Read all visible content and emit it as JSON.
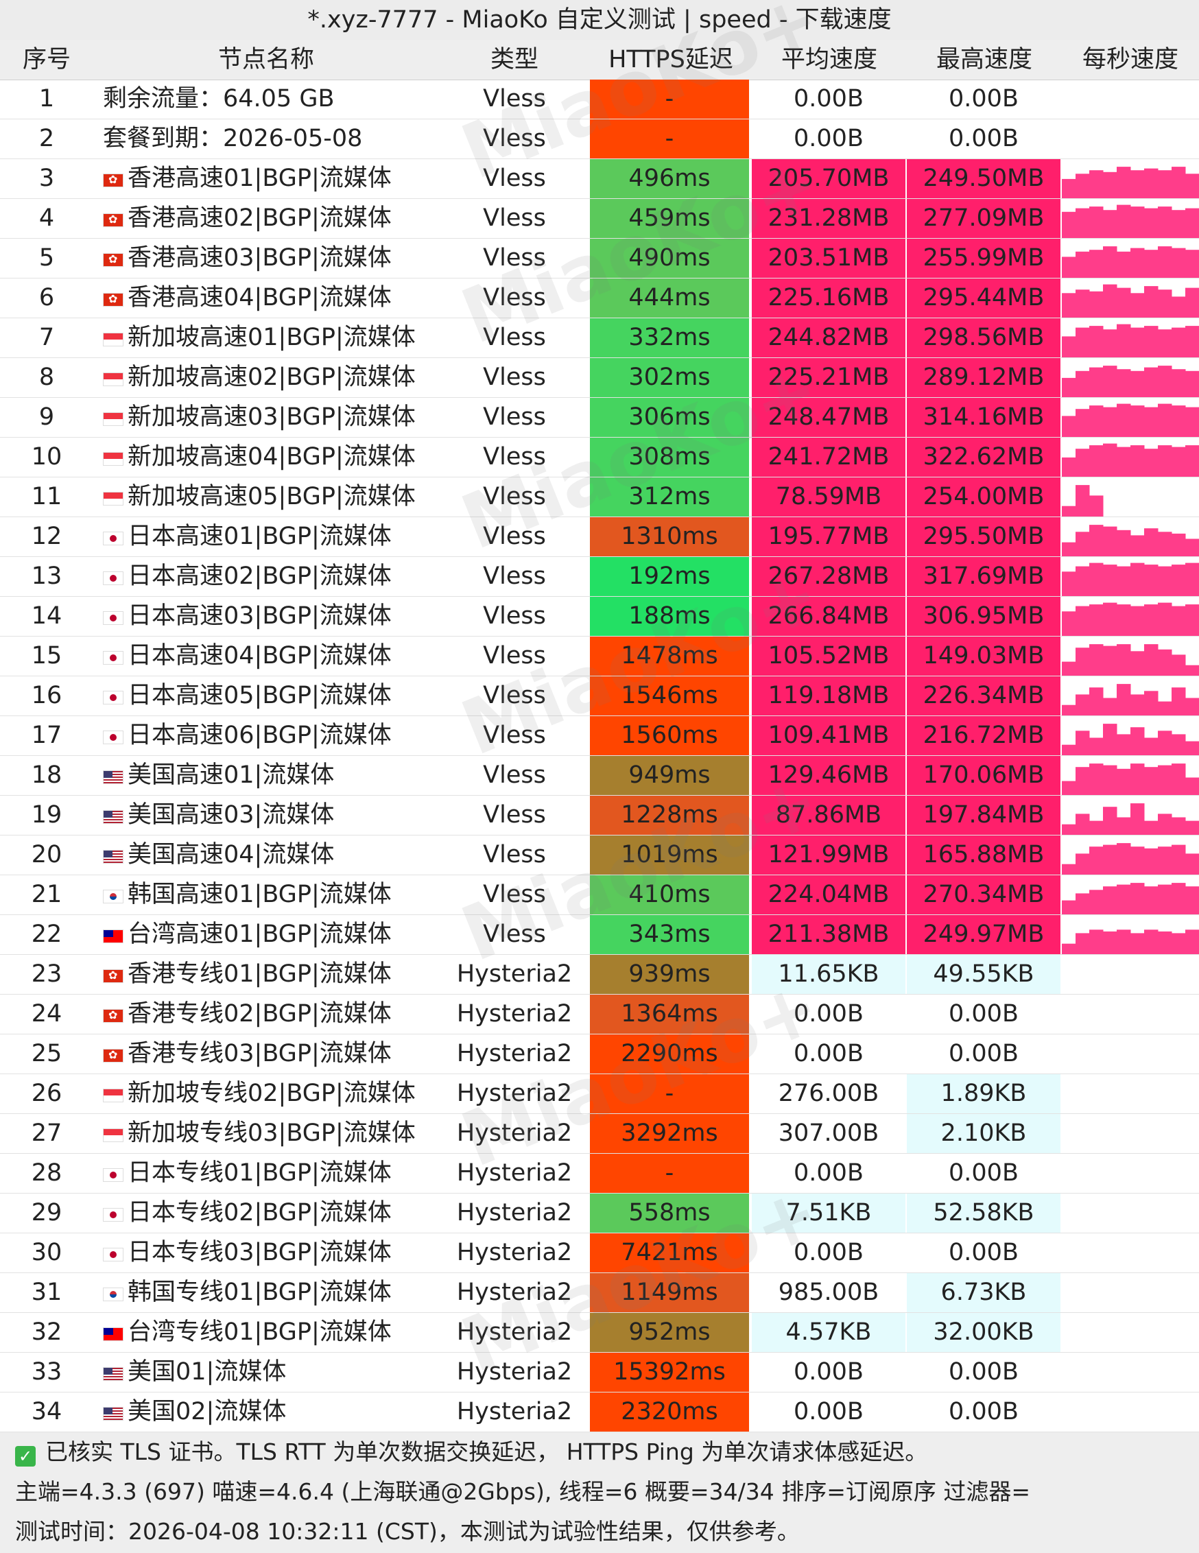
{
  "title": "*.xyz-7777 - MiaoKo 自定义测试 | speed - 下载速度",
  "columns": {
    "idx": "序号",
    "name": "节点名称",
    "type": "类型",
    "latency": "HTTPS延迟",
    "avg": "平均速度",
    "max": "最高速度",
    "persec": "每秒速度"
  },
  "colors": {
    "latency_red": "#ff4500",
    "latency_orange": "#e2571f",
    "latency_olive": "#a67f2e",
    "latency_green": "#45d45f",
    "latency_bright": "#23e064",
    "latency_mid": "#5bc95b",
    "speed_pink": "#ff1f6b",
    "speed_light": "#e4fbfd",
    "spark": "#ff3d8a"
  },
  "rows": [
    {
      "idx": "1",
      "flag": "",
      "name": "剩余流量：64.05 GB",
      "type": "Vless",
      "latency": "-",
      "lat_color": "red",
      "avg": "0.00B",
      "avg_color": "",
      "max": "0.00B",
      "max_color": "",
      "spark": []
    },
    {
      "idx": "2",
      "flag": "",
      "name": "套餐到期：2026-05-08",
      "type": "Vless",
      "latency": "-",
      "lat_color": "red",
      "avg": "0.00B",
      "avg_color": "",
      "max": "0.00B",
      "max_color": "",
      "spark": []
    },
    {
      "idx": "3",
      "flag": "hk",
      "name": "香港高速01|BGP|流媒体",
      "type": "Vless",
      "latency": "496ms",
      "lat_color": "mid",
      "avg": "205.70MB",
      "avg_color": "pink",
      "max": "249.50MB",
      "max_color": "pink",
      "spark": [
        0.55,
        0.7,
        0.8,
        0.75,
        0.9,
        0.8,
        0.85,
        0.8,
        0.9,
        0.7
      ]
    },
    {
      "idx": "4",
      "flag": "hk",
      "name": "香港高速02|BGP|流媒体",
      "type": "Vless",
      "latency": "459ms",
      "lat_color": "mid",
      "avg": "231.28MB",
      "avg_color": "pink",
      "max": "277.09MB",
      "max_color": "pink",
      "spark": [
        0.75,
        0.85,
        0.9,
        0.8,
        0.95,
        0.9,
        0.85,
        0.9,
        0.8,
        0.85
      ]
    },
    {
      "idx": "5",
      "flag": "hk",
      "name": "香港高速03|BGP|流媒体",
      "type": "Vless",
      "latency": "490ms",
      "lat_color": "mid",
      "avg": "203.51MB",
      "avg_color": "pink",
      "max": "255.99MB",
      "max_color": "pink",
      "spark": [
        0.6,
        0.75,
        0.8,
        0.9,
        0.75,
        0.85,
        0.8,
        0.9,
        0.85,
        0.8
      ]
    },
    {
      "idx": "6",
      "flag": "hk",
      "name": "香港高速04|BGP|流媒体",
      "type": "Vless",
      "latency": "444ms",
      "lat_color": "mid",
      "avg": "225.16MB",
      "avg_color": "pink",
      "max": "295.44MB",
      "max_color": "pink",
      "spark": [
        0.7,
        0.8,
        0.75,
        0.95,
        0.85,
        0.7,
        0.9,
        0.8,
        0.6,
        0.85
      ]
    },
    {
      "idx": "7",
      "flag": "sg",
      "name": "新加坡高速01|BGP|流媒体",
      "type": "Vless",
      "latency": "332ms",
      "lat_color": "green",
      "avg": "244.82MB",
      "avg_color": "pink",
      "max": "298.56MB",
      "max_color": "pink",
      "spark": [
        0.6,
        0.85,
        0.9,
        0.8,
        0.95,
        0.85,
        0.9,
        0.8,
        0.85,
        0.9
      ]
    },
    {
      "idx": "8",
      "flag": "sg",
      "name": "新加坡高速02|BGP|流媒体",
      "type": "Vless",
      "latency": "302ms",
      "lat_color": "green",
      "avg": "225.21MB",
      "avg_color": "pink",
      "max": "289.12MB",
      "max_color": "pink",
      "spark": [
        0.55,
        0.75,
        0.85,
        0.9,
        0.8,
        0.75,
        0.85,
        0.9,
        0.8,
        0.75
      ]
    },
    {
      "idx": "9",
      "flag": "sg",
      "name": "新加坡高速03|BGP|流媒体",
      "type": "Vless",
      "latency": "306ms",
      "lat_color": "green",
      "avg": "248.47MB",
      "avg_color": "pink",
      "max": "314.16MB",
      "max_color": "pink",
      "spark": [
        0.6,
        0.8,
        0.9,
        0.85,
        0.95,
        0.9,
        0.85,
        0.95,
        0.9,
        0.85
      ]
    },
    {
      "idx": "10",
      "flag": "sg",
      "name": "新加坡高速04|BGP|流媒体",
      "type": "Vless",
      "latency": "308ms",
      "lat_color": "green",
      "avg": "241.72MB",
      "avg_color": "pink",
      "max": "322.62MB",
      "max_color": "pink",
      "spark": [
        0.55,
        0.8,
        0.9,
        0.95,
        0.85,
        0.9,
        0.8,
        0.9,
        0.85,
        0.9
      ]
    },
    {
      "idx": "11",
      "flag": "sg",
      "name": "新加坡高速05|BGP|流媒体",
      "type": "Vless",
      "latency": "312ms",
      "lat_color": "green",
      "avg": "78.59MB",
      "avg_color": "pink",
      "max": "254.00MB",
      "max_color": "pink",
      "spark": [
        0.3,
        0.9,
        0.6,
        0.0,
        0.0,
        0.0,
        0.0,
        0.0,
        0.0,
        0.0
      ]
    },
    {
      "idx": "12",
      "flag": "jp",
      "name": "日本高速01|BGP|流媒体",
      "type": "Vless",
      "latency": "1310ms",
      "lat_color": "orange",
      "avg": "195.77MB",
      "avg_color": "pink",
      "max": "295.50MB",
      "max_color": "pink",
      "spark": [
        0.4,
        0.7,
        0.9,
        0.85,
        0.75,
        0.6,
        0.8,
        0.7,
        0.65,
        0.5
      ]
    },
    {
      "idx": "13",
      "flag": "jp",
      "name": "日本高速02|BGP|流媒体",
      "type": "Vless",
      "latency": "192ms",
      "lat_color": "bright",
      "avg": "267.28MB",
      "avg_color": "pink",
      "max": "317.69MB",
      "max_color": "pink",
      "spark": [
        0.7,
        0.85,
        0.95,
        0.9,
        0.85,
        0.95,
        0.9,
        0.85,
        0.9,
        0.95
      ]
    },
    {
      "idx": "14",
      "flag": "jp",
      "name": "日本高速03|BGP|流媒体",
      "type": "Vless",
      "latency": "188ms",
      "lat_color": "bright",
      "avg": "266.84MB",
      "avg_color": "pink",
      "max": "306.95MB",
      "max_color": "pink",
      "spark": [
        0.7,
        0.85,
        0.9,
        0.95,
        0.9,
        0.85,
        0.9,
        0.95,
        0.85,
        0.9
      ]
    },
    {
      "idx": "15",
      "flag": "jp",
      "name": "日本高速04|BGP|流媒体",
      "type": "Vless",
      "latency": "1478ms",
      "lat_color": "red",
      "avg": "105.52MB",
      "avg_color": "pink",
      "max": "149.03MB",
      "max_color": "pink",
      "spark": [
        0.4,
        0.8,
        0.9,
        0.85,
        0.9,
        0.7,
        0.9,
        0.75,
        0.6,
        0.3
      ]
    },
    {
      "idx": "16",
      "flag": "jp",
      "name": "日本高速05|BGP|流媒体",
      "type": "Vless",
      "latency": "1546ms",
      "lat_color": "red",
      "avg": "119.18MB",
      "avg_color": "pink",
      "max": "226.34MB",
      "max_color": "pink",
      "spark": [
        0.3,
        0.6,
        0.8,
        0.5,
        0.9,
        0.6,
        0.7,
        0.4,
        0.8,
        0.5
      ]
    },
    {
      "idx": "17",
      "flag": "jp",
      "name": "日本高速06|BGP|流媒体",
      "type": "Vless",
      "latency": "1560ms",
      "lat_color": "red",
      "avg": "109.41MB",
      "avg_color": "pink",
      "max": "216.72MB",
      "max_color": "pink",
      "spark": [
        0.3,
        0.7,
        0.5,
        0.9,
        0.6,
        0.8,
        0.5,
        0.7,
        0.6,
        0.4
      ]
    },
    {
      "idx": "18",
      "flag": "us",
      "name": "美国高速01|流媒体",
      "type": "Vless",
      "latency": "949ms",
      "lat_color": "olive",
      "avg": "129.46MB",
      "avg_color": "pink",
      "max": "170.06MB",
      "max_color": "pink",
      "spark": [
        0.4,
        0.8,
        0.9,
        0.85,
        0.75,
        0.9,
        0.8,
        0.85,
        0.9,
        0.5
      ]
    },
    {
      "idx": "19",
      "flag": "us",
      "name": "美国高速03|流媒体",
      "type": "Vless",
      "latency": "1228ms",
      "lat_color": "orange",
      "avg": "87.86MB",
      "avg_color": "pink",
      "max": "197.84MB",
      "max_color": "pink",
      "spark": [
        0.3,
        0.6,
        0.4,
        0.8,
        0.5,
        0.9,
        0.4,
        0.6,
        0.5,
        0.4
      ]
    },
    {
      "idx": "20",
      "flag": "us",
      "name": "美国高速04|流媒体",
      "type": "Vless",
      "latency": "1019ms",
      "lat_color": "olive",
      "avg": "121.99MB",
      "avg_color": "pink",
      "max": "165.88MB",
      "max_color": "pink",
      "spark": [
        0.3,
        0.6,
        0.8,
        0.85,
        0.9,
        0.8,
        0.75,
        0.8,
        0.85,
        0.6
      ]
    },
    {
      "idx": "21",
      "flag": "kr",
      "name": "韩国高速01|BGP|流媒体",
      "type": "Vless",
      "latency": "410ms",
      "lat_color": "mid",
      "avg": "224.04MB",
      "avg_color": "pink",
      "max": "270.34MB",
      "max_color": "pink",
      "spark": [
        0.4,
        0.6,
        0.7,
        0.8,
        0.85,
        0.9,
        0.8,
        0.85,
        0.9,
        0.8
      ]
    },
    {
      "idx": "22",
      "flag": "tw",
      "name": "台湾高速01|BGP|流媒体",
      "type": "Vless",
      "latency": "343ms",
      "lat_color": "green",
      "avg": "211.38MB",
      "avg_color": "pink",
      "max": "249.97MB",
      "max_color": "pink",
      "spark": [
        0.3,
        0.6,
        0.7,
        0.65,
        0.7,
        0.6,
        0.7,
        0.65,
        0.6,
        0.7
      ]
    },
    {
      "idx": "23",
      "flag": "hk",
      "name": "香港专线01|BGP|流媒体",
      "type": "Hysteria2",
      "latency": "939ms",
      "lat_color": "olive",
      "avg": "11.65KB",
      "avg_color": "light",
      "max": "49.55KB",
      "max_color": "light",
      "spark": []
    },
    {
      "idx": "24",
      "flag": "hk",
      "name": "香港专线02|BGP|流媒体",
      "type": "Hysteria2",
      "latency": "1364ms",
      "lat_color": "orange",
      "avg": "0.00B",
      "avg_color": "",
      "max": "0.00B",
      "max_color": "",
      "spark": []
    },
    {
      "idx": "25",
      "flag": "hk",
      "name": "香港专线03|BGP|流媒体",
      "type": "Hysteria2",
      "latency": "2290ms",
      "lat_color": "red",
      "avg": "0.00B",
      "avg_color": "",
      "max": "0.00B",
      "max_color": "",
      "spark": []
    },
    {
      "idx": "26",
      "flag": "sg",
      "name": "新加坡专线02|BGP|流媒体",
      "type": "Hysteria2",
      "latency": "-",
      "lat_color": "red",
      "avg": "276.00B",
      "avg_color": "",
      "max": "1.89KB",
      "max_color": "light",
      "spark": []
    },
    {
      "idx": "27",
      "flag": "sg",
      "name": "新加坡专线03|BGP|流媒体",
      "type": "Hysteria2",
      "latency": "3292ms",
      "lat_color": "red",
      "avg": "307.00B",
      "avg_color": "",
      "max": "2.10KB",
      "max_color": "light",
      "spark": []
    },
    {
      "idx": "28",
      "flag": "jp",
      "name": "日本专线01|BGP|流媒体",
      "type": "Hysteria2",
      "latency": "-",
      "lat_color": "red",
      "avg": "0.00B",
      "avg_color": "",
      "max": "0.00B",
      "max_color": "",
      "spark": []
    },
    {
      "idx": "29",
      "flag": "jp",
      "name": "日本专线02|BGP|流媒体",
      "type": "Hysteria2",
      "latency": "558ms",
      "lat_color": "mid",
      "avg": "7.51KB",
      "avg_color": "light",
      "max": "52.58KB",
      "max_color": "light",
      "spark": []
    },
    {
      "idx": "30",
      "flag": "jp",
      "name": "日本专线03|BGP|流媒体",
      "type": "Hysteria2",
      "latency": "7421ms",
      "lat_color": "red",
      "avg": "0.00B",
      "avg_color": "",
      "max": "0.00B",
      "max_color": "",
      "spark": []
    },
    {
      "idx": "31",
      "flag": "kr",
      "name": "韩国专线01|BGP|流媒体",
      "type": "Hysteria2",
      "latency": "1149ms",
      "lat_color": "orange",
      "avg": "985.00B",
      "avg_color": "",
      "max": "6.73KB",
      "max_color": "light",
      "spark": []
    },
    {
      "idx": "32",
      "flag": "tw",
      "name": "台湾专线01|BGP|流媒体",
      "type": "Hysteria2",
      "latency": "952ms",
      "lat_color": "olive",
      "avg": "4.57KB",
      "avg_color": "light",
      "max": "32.00KB",
      "max_color": "light",
      "spark": []
    },
    {
      "idx": "33",
      "flag": "us",
      "name": "美国01|流媒体",
      "type": "Hysteria2",
      "latency": "15392ms",
      "lat_color": "red",
      "avg": "0.00B",
      "avg_color": "",
      "max": "0.00B",
      "max_color": "",
      "spark": []
    },
    {
      "idx": "34",
      "flag": "us",
      "name": "美国02|流媒体",
      "type": "Hysteria2",
      "latency": "2320ms",
      "lat_color": "red",
      "avg": "0.00B",
      "avg_color": "",
      "max": "0.00B",
      "max_color": "",
      "spark": []
    }
  ],
  "footer": {
    "line1": "已核实 TLS 证书。TLS RTT 为单次数据交换延迟， HTTPS Ping 为单次请求体感延迟。",
    "line2": "主端=4.3.3 (697) 喵速=4.6.4 (上海联通@2Gbps), 线程=6 概要=34/34 排序=订阅原序 过滤器=",
    "line3": "测试时间：2026-04-08 10:32:11 (CST)，本测试为试验性结果，仅供参考。"
  },
  "watermark": "MiaoKo+"
}
